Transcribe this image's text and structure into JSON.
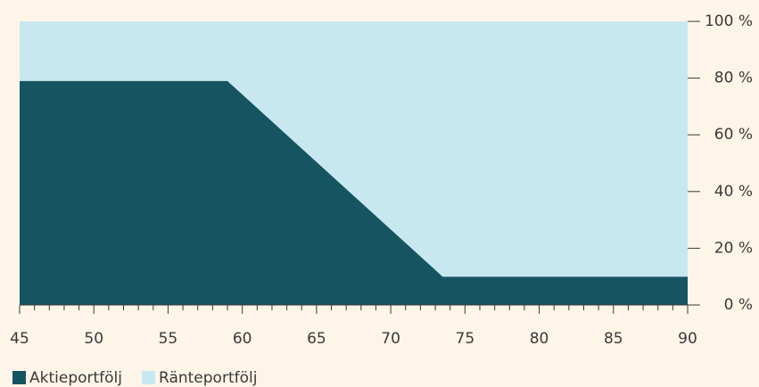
{
  "chart_data": {
    "type": "area",
    "stacked": true,
    "x": [
      45,
      59,
      73.5,
      90
    ],
    "series": [
      {
        "name": "Aktieportfölj",
        "color": "#165462",
        "values": [
          79,
          79,
          10,
          10
        ]
      },
      {
        "name": "Ränteportfölj",
        "color": "#c7e8f0",
        "values": [
          21,
          21,
          90,
          90
        ]
      }
    ],
    "xlim": [
      45,
      90
    ],
    "xticks": [
      45,
      50,
      55,
      60,
      65,
      70,
      75,
      80,
      85,
      90
    ],
    "xminorticks": [
      46,
      47,
      48,
      49,
      51,
      52,
      53,
      54,
      56,
      57,
      58,
      59,
      61,
      62,
      63,
      64,
      66,
      67,
      68,
      69,
      71,
      72,
      73,
      74,
      76,
      77,
      78,
      79,
      81,
      82,
      83,
      84,
      86,
      87,
      88,
      89
    ],
    "ylim": [
      0,
      100
    ],
    "yticks": [
      {
        "value": 0,
        "label": "0 %"
      },
      {
        "value": 20,
        "label": "20 %"
      },
      {
        "value": 40,
        "label": "40 %"
      },
      {
        "value": 60,
        "label": "60 %"
      },
      {
        "value": 80,
        "label": "80 %"
      },
      {
        "value": 100,
        "label": "100 %"
      }
    ],
    "legend": "bottom-left"
  }
}
